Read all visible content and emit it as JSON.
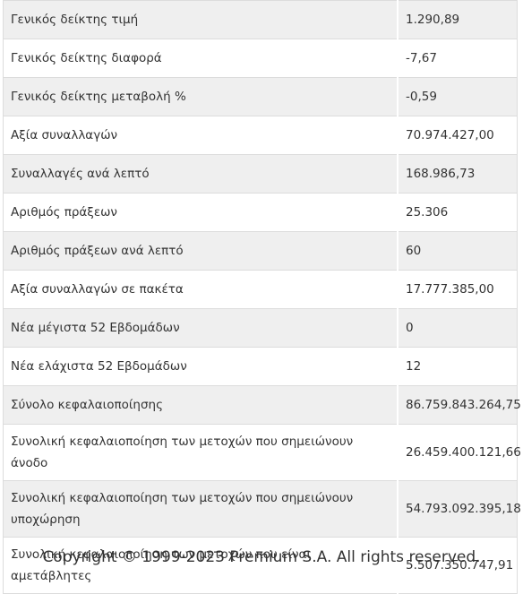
{
  "table": {
    "rows": [
      [
        "Γενικός δείκτης τιμή",
        "1.290,89"
      ],
      [
        "Γενικός δείκτης διαφορά",
        "-7,67"
      ],
      [
        "Γενικός δείκτης μεταβολή %",
        "-0,59"
      ],
      [
        "Αξία συναλλαγών",
        "70.974.427,00"
      ],
      [
        "Συναλλαγές ανά λεπτό",
        "168.986,73"
      ],
      [
        "Αριθμός πράξεων",
        "25.306"
      ],
      [
        "Αριθμός πράξεων ανά λεπτό",
        "60"
      ],
      [
        "Αξία συναλλαγών σε πακέτα",
        "17.777.385,00"
      ],
      [
        "Νέα μέγιστα 52 Εβδομάδων",
        "0"
      ],
      [
        "Νέα ελάχιστα 52 Εβδομάδων",
        "12"
      ],
      [
        "Σύνολο κεφαλαιοποίησης",
        "86.759.843.264,75"
      ],
      [
        "Συνολική κεφαλαιοποίηση των μετοχών που σημειώνουν άνοδο",
        "26.459.400.121,66"
      ],
      [
        "Συνολική κεφαλαιοποίηση των μετοχών που σημειώνουν υποχώρηση",
        "54.793.092.395,18"
      ],
      [
        "Συνολική κεφαλαιοποίηση των μετοχών που είναι αμετάβλητες",
        "5.507.350.747,91"
      ]
    ]
  },
  "footer": {
    "copyright": "Copyright © 1999-2023 Premium S.A. All rights reserved."
  }
}
